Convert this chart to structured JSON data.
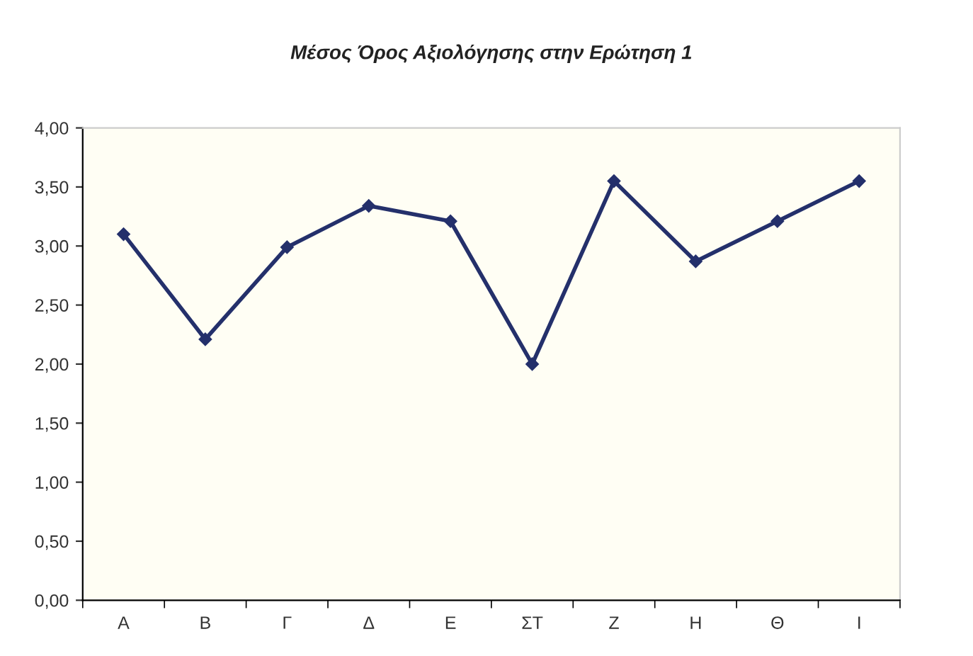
{
  "chart_data": {
    "type": "line",
    "title": "Μέσος Όρος Αξιολόγησης στην Ερώτηση 1",
    "categories": [
      "Α",
      "Β",
      "Γ",
      "Δ",
      "Ε",
      "ΣΤ",
      "Ζ",
      "Η",
      "Θ",
      "Ι"
    ],
    "series": [
      {
        "color": "#24306b",
        "values": [
          3.1,
          2.21,
          2.99,
          3.34,
          3.21,
          2.0,
          3.55,
          2.87,
          3.21,
          3.55
        ]
      }
    ],
    "ylim": [
      0,
      4
    ],
    "yticks": [
      {
        "value": 0,
        "label": "0,00"
      },
      {
        "value": 0.5,
        "label": "0,50"
      },
      {
        "value": 1,
        "label": "1,00"
      },
      {
        "value": 1.5,
        "label": "1,50"
      },
      {
        "value": 2,
        "label": "2,00"
      },
      {
        "value": 2.5,
        "label": "2,50"
      },
      {
        "value": 3,
        "label": "3,00"
      },
      {
        "value": 3.5,
        "label": "3,50"
      },
      {
        "value": 4,
        "label": "4,00"
      }
    ],
    "marker": "diamond",
    "line_style": "solid",
    "grid": false,
    "legend": false
  }
}
